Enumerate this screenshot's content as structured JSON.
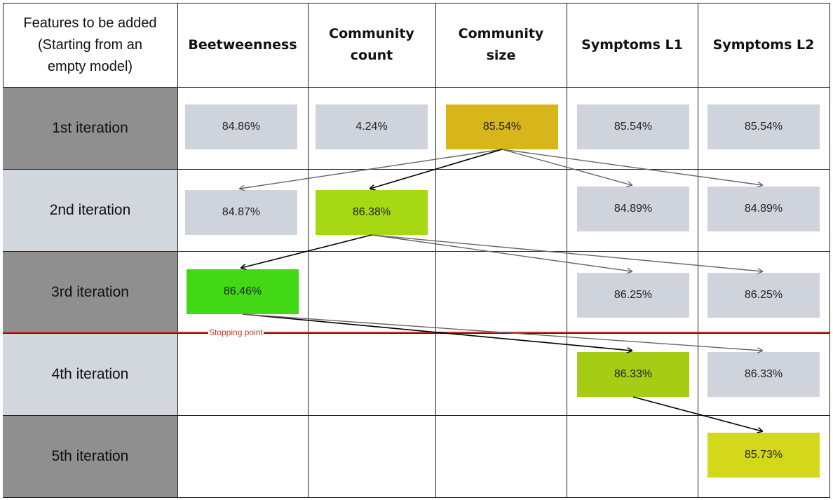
{
  "corner_header": [
    "Features to be added",
    "(Starting from an",
    "empty model)"
  ],
  "columns": [
    [
      "Beetweenness"
    ],
    [
      "Community",
      "count"
    ],
    [
      "Community",
      "size"
    ],
    [
      "Symptoms L1"
    ],
    [
      "Symptoms L2"
    ]
  ],
  "iterations": [
    "1st iteration",
    "2nd iteration",
    "3rd iteration",
    "4th iteration",
    "5th iteration"
  ],
  "colors": {
    "row_dark": "#8f8f8f",
    "row_light": "#d2d6dd",
    "cell_default": "#cfd4dc",
    "best_iter1": "#d6b61a",
    "best_iter2": "#a6d814",
    "best_iter3": "#42d816",
    "best_iter4": "#a6cc16",
    "best_iter5": "#d4d81a",
    "stopping_line": "#c0392b",
    "arrow_gray": "#666666",
    "arrow_black": "#000000"
  },
  "cells": [
    {
      "id": "r1c1",
      "row": 1,
      "col": 1,
      "value": "84.86%",
      "highlight": false
    },
    {
      "id": "r1c2",
      "row": 1,
      "col": 2,
      "value": "4.24%",
      "highlight": false
    },
    {
      "id": "r1c3",
      "row": 1,
      "col": 3,
      "value": "85.54%",
      "highlight": true,
      "color_key": "best_iter1"
    },
    {
      "id": "r1c4",
      "row": 1,
      "col": 4,
      "value": "85.54%",
      "highlight": false
    },
    {
      "id": "r1c5",
      "row": 1,
      "col": 5,
      "value": "85.54%",
      "highlight": false
    },
    {
      "id": "r2c1",
      "row": 2,
      "col": 1,
      "value": "84.87%",
      "highlight": false
    },
    {
      "id": "r2c2",
      "row": 2,
      "col": 2,
      "value": "86.38%",
      "highlight": true,
      "color_key": "best_iter2"
    },
    {
      "id": "r2c4",
      "row": 2,
      "col": 4,
      "value": "84.89%",
      "highlight": false
    },
    {
      "id": "r2c5",
      "row": 2,
      "col": 5,
      "value": "84.89%",
      "highlight": false
    },
    {
      "id": "r3c1",
      "row": 3,
      "col": 1,
      "value": "86.46%",
      "highlight": true,
      "color_key": "best_iter3"
    },
    {
      "id": "r3c4",
      "row": 3,
      "col": 4,
      "value": "86.25%",
      "highlight": false
    },
    {
      "id": "r3c5",
      "row": 3,
      "col": 5,
      "value": "86.25%",
      "highlight": false
    },
    {
      "id": "r4c4",
      "row": 4,
      "col": 4,
      "value": "86.33%",
      "highlight": true,
      "color_key": "best_iter4"
    },
    {
      "id": "r4c5",
      "row": 4,
      "col": 5,
      "value": "86.33%",
      "highlight": false
    },
    {
      "id": "r5c5",
      "row": 5,
      "col": 5,
      "value": "85.73%",
      "highlight": true,
      "color_key": "best_iter5"
    }
  ],
  "arrows": [
    {
      "from": "r1c3",
      "to": "r2c1",
      "color": "arrow_gray"
    },
    {
      "from": "r1c3",
      "to": "r2c2",
      "color": "arrow_black"
    },
    {
      "from": "r1c3",
      "to": "r2c4",
      "color": "arrow_gray"
    },
    {
      "from": "r1c3",
      "to": "r2c5",
      "color": "arrow_gray"
    },
    {
      "from": "r2c2",
      "to": "r3c1",
      "color": "arrow_black"
    },
    {
      "from": "r2c2",
      "to": "r3c4",
      "color": "arrow_gray"
    },
    {
      "from": "r2c2",
      "to": "r3c5",
      "color": "arrow_gray"
    },
    {
      "from": "r3c1",
      "to": "r4c4",
      "color": "arrow_black"
    },
    {
      "from": "r3c1",
      "to": "r4c5",
      "color": "arrow_gray"
    },
    {
      "from": "r4c4",
      "to": "r5c5",
      "color": "arrow_black"
    }
  ],
  "stopping_point": {
    "label": "Stopping point",
    "after_iteration": 3
  }
}
